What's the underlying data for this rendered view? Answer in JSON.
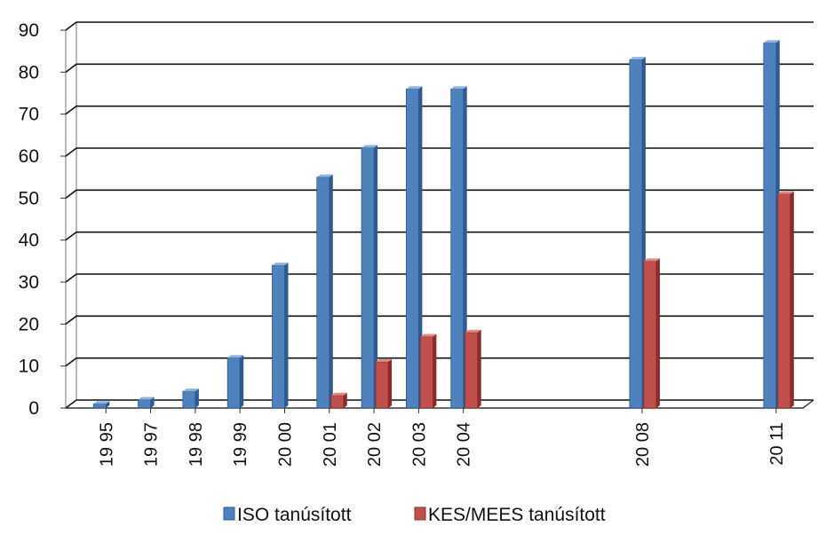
{
  "chart_data": {
    "type": "bar",
    "title": "",
    "xlabel": "",
    "ylabel": "",
    "categories": [
      "1995",
      "1997",
      "1998",
      "1999",
      "2000",
      "2001",
      "2002",
      "2003",
      "2004",
      "2008",
      "2011"
    ],
    "x_positions": [
      1995,
      1996,
      1997,
      1998,
      1999,
      2000,
      2001,
      2002,
      2003,
      2007,
      2010
    ],
    "tick_labels": [
      "19 95",
      "19 97",
      "19 98",
      "19 99",
      "20 00",
      "20 01",
      "20 02",
      "20 03",
      "20 04",
      "20 08",
      "20 11"
    ],
    "series": [
      {
        "name": "ISO tanúsított",
        "values": [
          1,
          2,
          4,
          12,
          34,
          55,
          62,
          76,
          76,
          83,
          87
        ]
      },
      {
        "name": "KES/MEES tanúsított",
        "values": [
          0,
          0,
          0,
          0,
          0,
          3,
          11,
          17,
          18,
          35,
          51
        ]
      }
    ],
    "ylim": [
      0,
      90
    ],
    "yticks": [
      0,
      10,
      20,
      30,
      40,
      50,
      60,
      70,
      80,
      90
    ],
    "grid": true,
    "legend": "bottom",
    "colors": {
      "series": [
        "#4f81bd",
        "#c0504d"
      ],
      "series_dark": [
        "#2d5b8f",
        "#8c2c2a"
      ],
      "series_light": [
        "#8fb3de",
        "#e08a87"
      ],
      "grid": "#111111"
    }
  }
}
